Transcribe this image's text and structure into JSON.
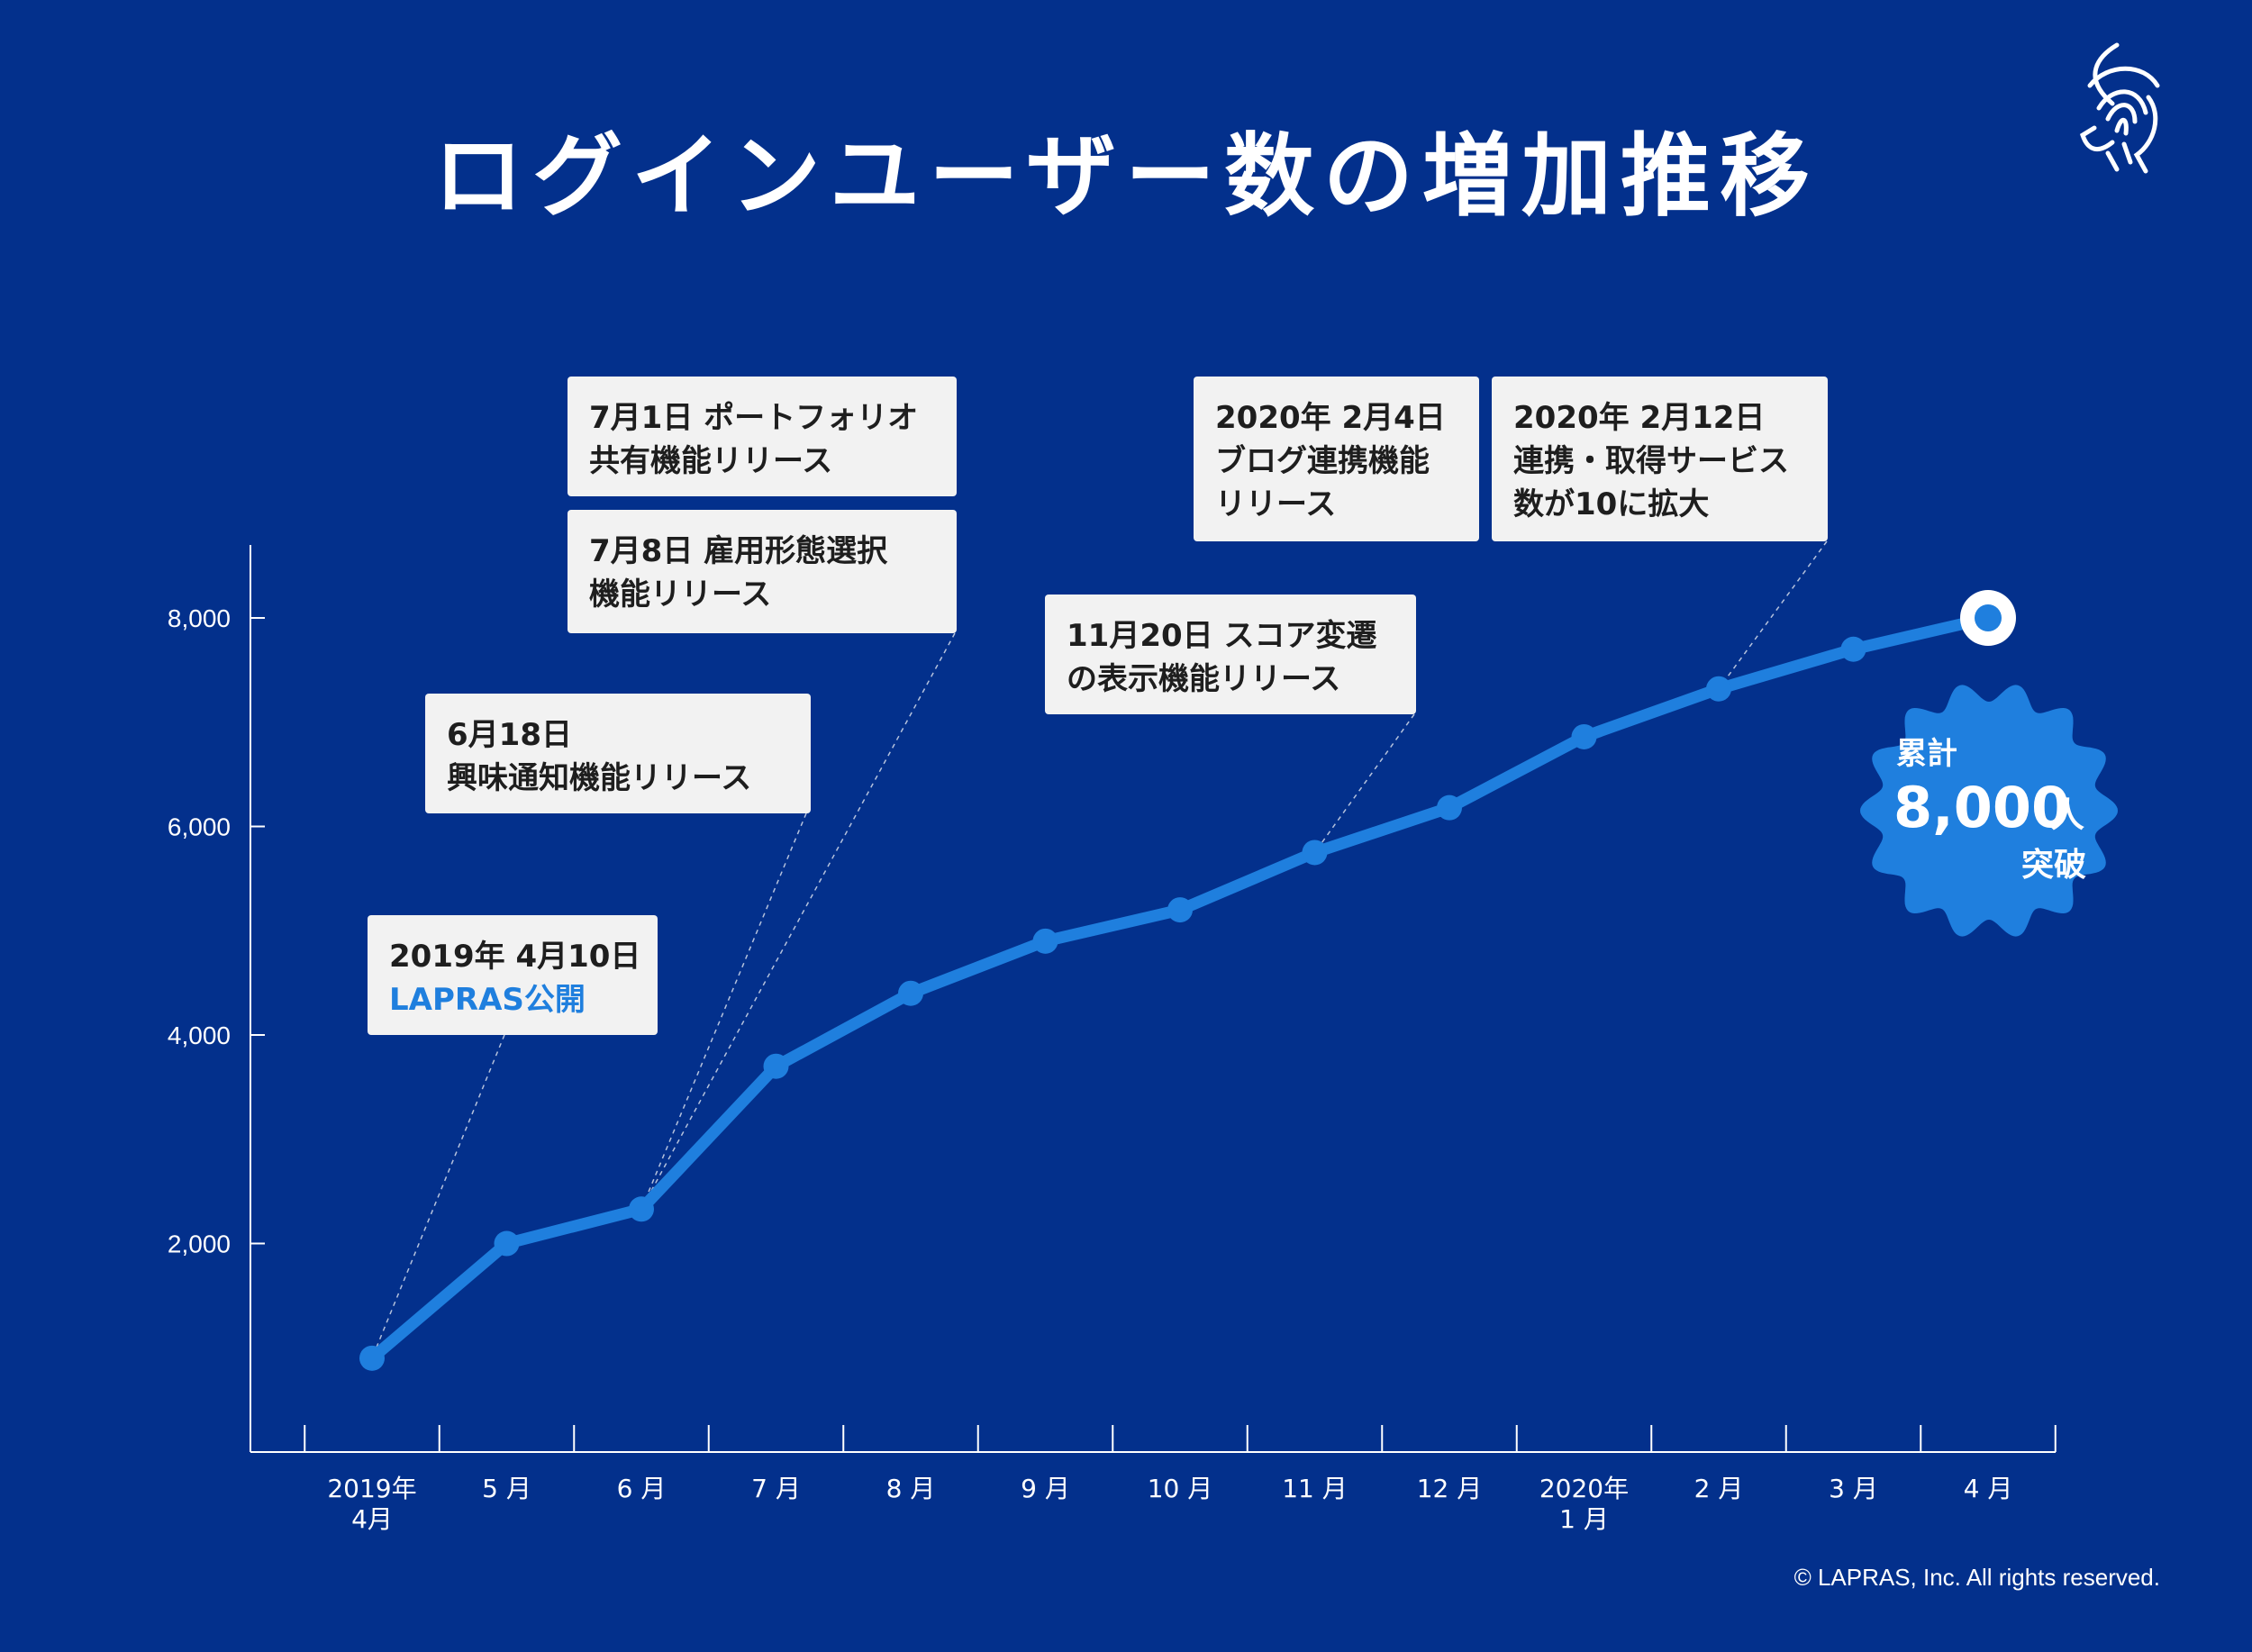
{
  "page": {
    "background": "#03308c",
    "line_color": "#1f7fde",
    "callout_bg": "#f2f2f2",
    "callout_text": "#1e1e1e",
    "callout_accent": "#1f7fde",
    "copyright": "© LAPRAS, Inc. All rights reserved.",
    "logo_icon": "fingerprint-head-icon"
  },
  "chart_data": {
    "type": "line",
    "title": "ログインユーザー数の増加推移",
    "xlabel": "",
    "ylabel": "",
    "categories": [
      [
        "2019年",
        "4月"
      ],
      [
        "5 月"
      ],
      [
        "6 月"
      ],
      [
        "7 月"
      ],
      [
        "8 月"
      ],
      [
        "9 月"
      ],
      [
        "10 月"
      ],
      [
        "11 月"
      ],
      [
        "12 月"
      ],
      [
        "2020年",
        "1 月"
      ],
      [
        "2 月"
      ],
      [
        "3 月"
      ],
      [
        "4 月"
      ]
    ],
    "series": [
      {
        "values": [
          900,
          2000,
          2330,
          3700,
          4400,
          4900,
          5200,
          5750,
          6180,
          6860,
          7320,
          7700,
          8000
        ]
      }
    ],
    "ylim": [
      0,
      8700
    ],
    "yticks": [
      2000,
      4000,
      6000,
      8000
    ],
    "ytick_labels": [
      "2,000",
      "4,000",
      "6,000",
      "8,000"
    ],
    "grid": false,
    "annotations": [
      {
        "lines": [
          [
            "2019年 4月10日"
          ],
          [
            "LAPRAS公開"
          ]
        ],
        "accent_lines": [
          1
        ],
        "point": 0
      },
      {
        "lines": [
          [
            "6月18日"
          ],
          [
            "興味通知機能リリース"
          ]
        ],
        "accent_lines": [],
        "point": 2
      },
      {
        "lines": [
          [
            "7月1日 ポートフォリオ"
          ],
          [
            "共有機能リリース"
          ]
        ],
        "accent_lines": [],
        "point": null
      },
      {
        "lines": [
          [
            "7月8日 雇用形態選択"
          ],
          [
            "機能リリース"
          ]
        ],
        "accent_lines": [],
        "point": 2
      },
      {
        "lines": [
          [
            "11月20日 スコア変遷"
          ],
          [
            "の表示機能リリース"
          ]
        ],
        "accent_lines": [],
        "point": 7
      },
      {
        "lines": [
          [
            "2020年 2月4日"
          ],
          [
            "ブログ連携機能"
          ],
          [
            "リリース"
          ]
        ],
        "accent_lines": [],
        "point": null
      },
      {
        "lines": [
          [
            "2020年 2月12日"
          ],
          [
            "連携・取得サービス"
          ],
          [
            "数が10に拡大"
          ]
        ],
        "accent_lines": [],
        "point": 10
      }
    ],
    "badge": {
      "line1": "累計",
      "value": "8,000",
      "unit": "人",
      "line3": "突破"
    }
  }
}
